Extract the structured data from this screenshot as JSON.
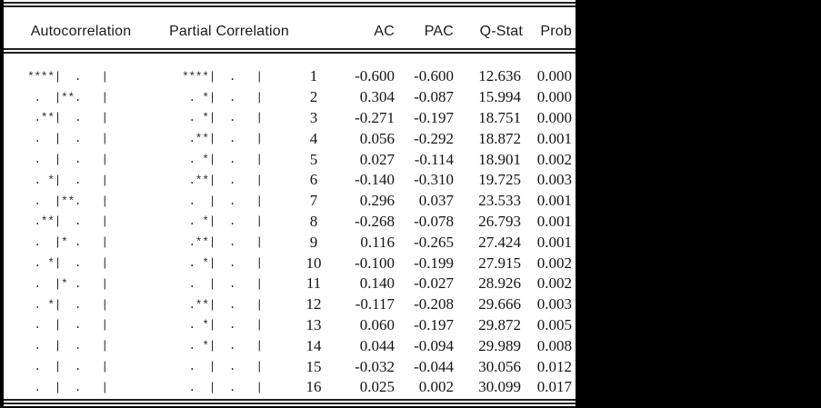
{
  "table": {
    "headers": {
      "autocorrelation": "Autocorrelation",
      "partial_correlation": "Partial Correlation",
      "lag": "",
      "ac": "AC",
      "pac": "PAC",
      "qstat": "Q-Stat",
      "prob": "Prob"
    },
    "rows": [
      {
        "ac_bar": "****|  .   |",
        "pac_bar": "****|  .   |",
        "lag": "1",
        "ac": "-0.600",
        "pac": "-0.600",
        "qstat": "12.636",
        "prob": "0.000"
      },
      {
        "ac_bar": " .  |**.   |",
        "pac_bar": " . *|  .   |",
        "lag": "2",
        "ac": "0.304",
        "pac": "-0.087",
        "qstat": "15.994",
        "prob": "0.000"
      },
      {
        "ac_bar": " .**|  .   |",
        "pac_bar": " . *|  .   |",
        "lag": "3",
        "ac": "-0.271",
        "pac": "-0.197",
        "qstat": "18.751",
        "prob": "0.000"
      },
      {
        "ac_bar": " .  |  .   |",
        "pac_bar": " .**|  .   |",
        "lag": "4",
        "ac": "0.056",
        "pac": "-0.292",
        "qstat": "18.872",
        "prob": "0.001"
      },
      {
        "ac_bar": " .  |  .   |",
        "pac_bar": " . *|  .   |",
        "lag": "5",
        "ac": "0.027",
        "pac": "-0.114",
        "qstat": "18.901",
        "prob": "0.002"
      },
      {
        "ac_bar": " . *|  .   |",
        "pac_bar": " .**|  .   |",
        "lag": "6",
        "ac": "-0.140",
        "pac": "-0.310",
        "qstat": "19.725",
        "prob": "0.003"
      },
      {
        "ac_bar": " .  |**.   |",
        "pac_bar": " .  |  .   |",
        "lag": "7",
        "ac": "0.296",
        "pac": "0.037",
        "qstat": "23.533",
        "prob": "0.001"
      },
      {
        "ac_bar": " .**|  .   |",
        "pac_bar": " . *|  .   |",
        "lag": "8",
        "ac": "-0.268",
        "pac": "-0.078",
        "qstat": "26.793",
        "prob": "0.001"
      },
      {
        "ac_bar": " .  |* .   |",
        "pac_bar": " .**|  .   |",
        "lag": "9",
        "ac": "0.116",
        "pac": "-0.265",
        "qstat": "27.424",
        "prob": "0.001"
      },
      {
        "ac_bar": " . *|  .   |",
        "pac_bar": " . *|  .   |",
        "lag": "10",
        "ac": "-0.100",
        "pac": "-0.199",
        "qstat": "27.915",
        "prob": "0.002"
      },
      {
        "ac_bar": " .  |* .   |",
        "pac_bar": " .  |  .   |",
        "lag": "11",
        "ac": "0.140",
        "pac": "-0.027",
        "qstat": "28.926",
        "prob": "0.002"
      },
      {
        "ac_bar": " . *|  .   |",
        "pac_bar": " .**|  .   |",
        "lag": "12",
        "ac": "-0.117",
        "pac": "-0.208",
        "qstat": "29.666",
        "prob": "0.003"
      },
      {
        "ac_bar": " .  |  .   |",
        "pac_bar": " . *|  .   |",
        "lag": "13",
        "ac": "0.060",
        "pac": "-0.197",
        "qstat": "29.872",
        "prob": "0.005"
      },
      {
        "ac_bar": " .  |  .   |",
        "pac_bar": " . *|  .   |",
        "lag": "14",
        "ac": "0.044",
        "pac": "-0.094",
        "qstat": "29.989",
        "prob": "0.008"
      },
      {
        "ac_bar": " .  |  .   |",
        "pac_bar": " .  |  .   |",
        "lag": "15",
        "ac": "-0.032",
        "pac": "-0.044",
        "qstat": "30.056",
        "prob": "0.012"
      },
      {
        "ac_bar": " .  |  .   |",
        "pac_bar": " .  |  .   |",
        "lag": "16",
        "ac": "0.025",
        "pac": "0.002",
        "qstat": "30.099",
        "prob": "0.017"
      }
    ]
  },
  "colors": {
    "background": "#000000",
    "panel": "#ffffff",
    "rule": "#1f1f1f",
    "text": "#141414"
  }
}
